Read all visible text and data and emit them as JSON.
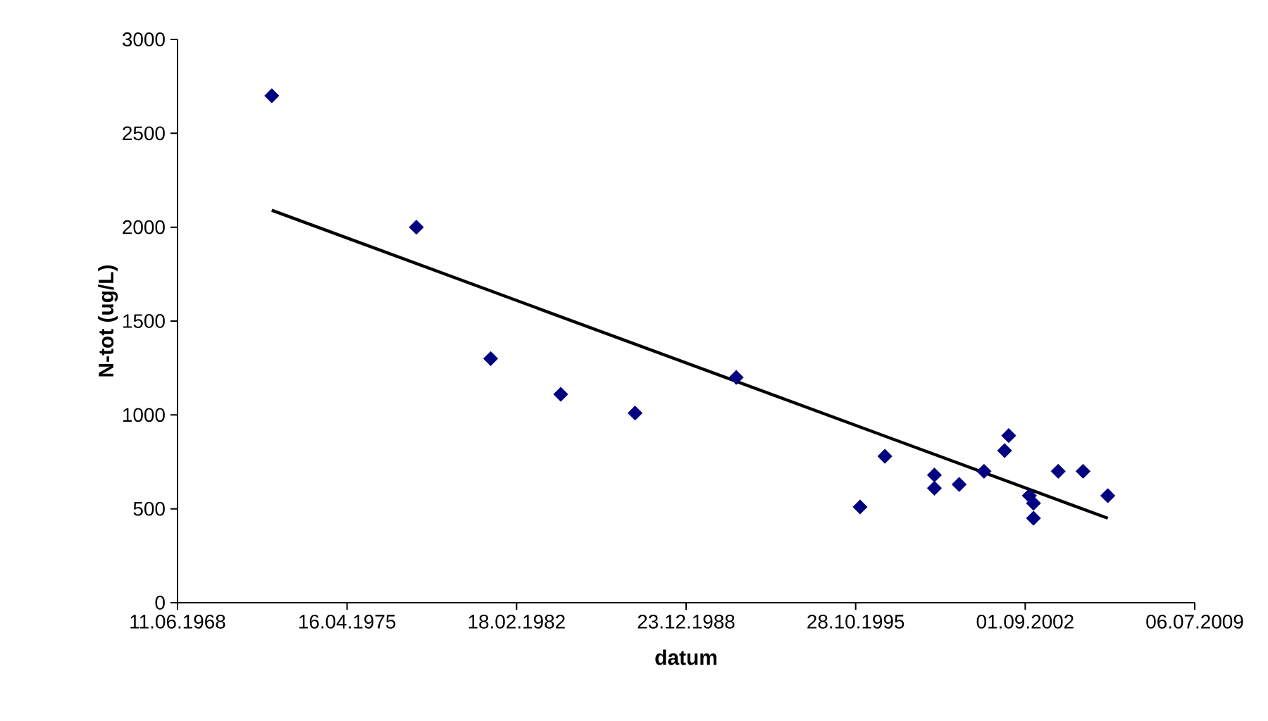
{
  "chart_data": {
    "type": "scatter",
    "xlabel": "datum",
    "ylabel": "N-tot (ug/L)",
    "series": [
      {
        "marker": "diamond",
        "color": "#000080",
        "x": [
          "1972-04",
          "1978-02",
          "1981-02",
          "1983-12",
          "1986-12",
          "1991-01",
          "1996-01",
          "1997-01",
          "1999-01",
          "1999-01",
          "2000-01",
          "2001-01",
          "2001-11",
          "2002-01",
          "2002-11",
          "2003-01",
          "2003-01",
          "2004-01",
          "2005-01",
          "2006-01"
        ],
        "values": [
          2700,
          2000,
          1300,
          1110,
          1010,
          1200,
          510,
          780,
          680,
          610,
          630,
          700,
          810,
          890,
          570,
          530,
          450,
          700,
          700,
          570
        ]
      },
      {
        "type": "line",
        "marker": "none",
        "color": "#000000",
        "x": [
          "1972-04",
          "2006-01"
        ],
        "values": [
          2090,
          450
        ]
      }
    ],
    "grid": false,
    "xlim": [
      "1968-06-11",
      "2009-07-06"
    ],
    "xticks": [
      {
        "value": "1968-06-11",
        "label": "11.06.1968"
      },
      {
        "value": "1975-04-16",
        "label": "16.04.1975"
      },
      {
        "value": "1982-02-18",
        "label": "18.02.1982"
      },
      {
        "value": "1988-12-23",
        "label": "23.12.1988"
      },
      {
        "value": "1995-10-28",
        "label": "28.10.1995"
      },
      {
        "value": "2002-09-01",
        "label": "01.09.2002"
      },
      {
        "value": "2009-07-06",
        "label": "06.07.2009"
      }
    ],
    "ylim": [
      0,
      3000
    ],
    "yticks": [
      0,
      500,
      1000,
      1500,
      2000,
      2500,
      3000
    ]
  }
}
